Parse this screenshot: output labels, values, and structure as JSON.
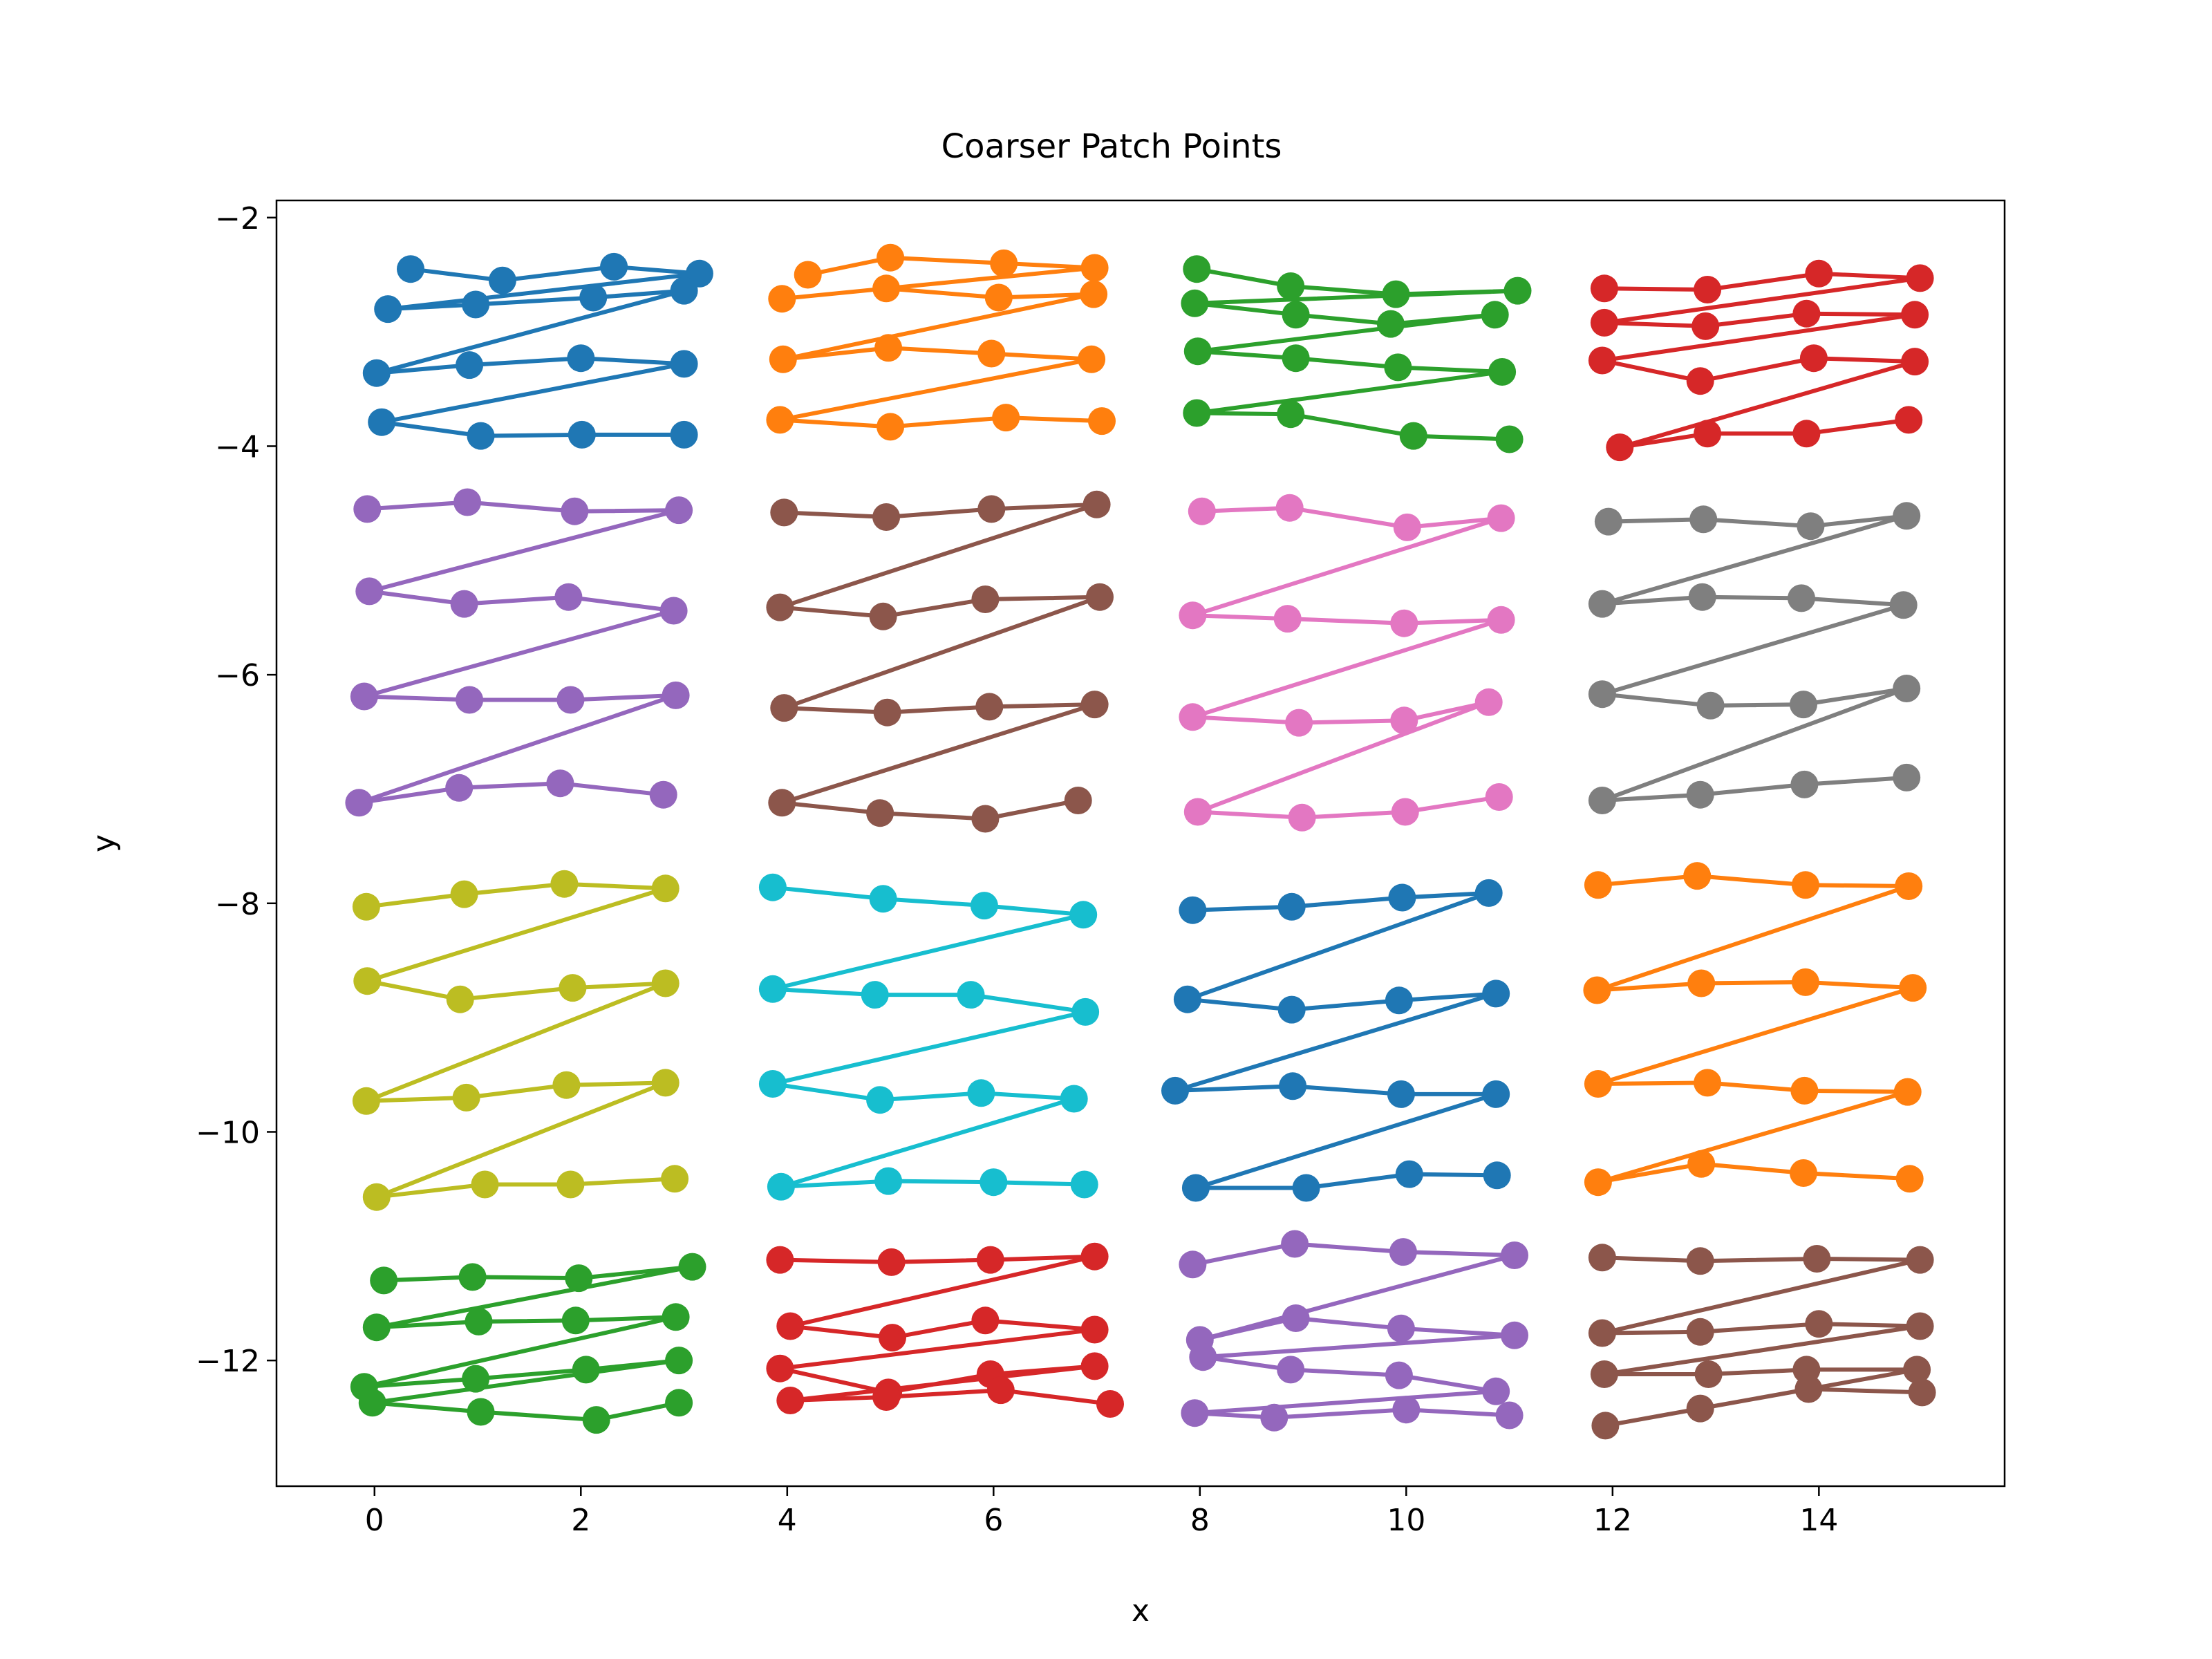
{
  "chart_data": {
    "type": "line",
    "title": "Coarser Patch Points",
    "xlabel": "x",
    "ylabel": "y",
    "xlim": [
      -0.95,
      15.8
    ],
    "ylim": [
      -13.1,
      -1.85
    ],
    "xticks": [
      0,
      2,
      4,
      6,
      8,
      10,
      12,
      14
    ],
    "yticks": [
      -12,
      -10,
      -8,
      -6,
      -4,
      -2
    ],
    "xtick_labels": [
      "0",
      "2",
      "4",
      "6",
      "8",
      "10",
      "12",
      "14"
    ],
    "ytick_labels": [
      "−12",
      "−10",
      "−8",
      "−6",
      "−4",
      "−2"
    ],
    "grid": false,
    "legend": false,
    "marker": "circle",
    "series": [
      {
        "color": "#1f77b4",
        "x": [
          0.35,
          1.24,
          2.32,
          3.15,
          0.13,
          0.98,
          2.12,
          3.0,
          0.02,
          0.92,
          2.0,
          3.0,
          0.07,
          1.03,
          2.01,
          3.0
        ],
        "y": [
          -2.45,
          -2.55,
          -2.43,
          -2.49,
          -2.8,
          -2.76,
          -2.7,
          -2.64,
          -3.36,
          -3.29,
          -3.23,
          -3.28,
          -3.79,
          -3.91,
          -3.9,
          -3.9
        ]
      },
      {
        "color": "#ff7f0e",
        "x": [
          4.2,
          5.0,
          6.1,
          6.98,
          3.95,
          4.96,
          6.05,
          6.97,
          3.96,
          4.98,
          5.98,
          6.95,
          3.93,
          5.0,
          6.12,
          7.05
        ],
        "y": [
          -2.5,
          -2.35,
          -2.4,
          -2.44,
          -2.71,
          -2.62,
          -2.7,
          -2.67,
          -3.24,
          -3.14,
          -3.19,
          -3.24,
          -3.77,
          -3.83,
          -3.75,
          -3.78
        ]
      },
      {
        "color": "#2ca02c",
        "x": [
          7.97,
          8.88,
          9.9,
          11.08,
          7.95,
          8.93,
          9.85,
          10.86,
          7.98,
          8.93,
          9.92,
          10.93,
          7.97,
          8.88,
          10.07,
          11.0
        ],
        "y": [
          -2.45,
          -2.6,
          -2.67,
          -2.64,
          -2.75,
          -2.85,
          -2.93,
          -2.85,
          -3.17,
          -3.23,
          -3.31,
          -3.35,
          -3.71,
          -3.72,
          -3.91,
          -3.94
        ]
      },
      {
        "color": "#d62728",
        "x": [
          11.92,
          12.92,
          14.0,
          14.98,
          11.92,
          12.9,
          13.88,
          14.93,
          11.9,
          12.85,
          13.95,
          14.93,
          12.07,
          12.92,
          13.88,
          14.87
        ],
        "y": [
          -2.62,
          -2.63,
          -2.49,
          -2.53,
          -2.92,
          -2.95,
          -2.84,
          -2.85,
          -3.25,
          -3.43,
          -3.23,
          -3.26,
          -4.01,
          -3.89,
          -3.89,
          -3.77
        ]
      },
      {
        "color": "#9467bd",
        "x": [
          -0.07,
          0.9,
          1.94,
          2.95,
          -0.05,
          0.87,
          1.88,
          2.9,
          -0.1,
          0.92,
          1.9,
          2.92,
          -0.15,
          0.82,
          1.8,
          2.8
        ],
        "y": [
          -4.55,
          -4.49,
          -4.57,
          -4.56,
          -5.27,
          -5.38,
          -5.32,
          -5.44,
          -6.19,
          -6.22,
          -6.22,
          -6.18,
          -7.12,
          -6.99,
          -6.95,
          -7.05
        ]
      },
      {
        "color": "#8c564b",
        "x": [
          3.97,
          4.96,
          5.98,
          7.0,
          3.93,
          4.93,
          5.92,
          7.03,
          3.97,
          4.97,
          5.96,
          6.98,
          3.95,
          4.9,
          5.92,
          6.82
        ],
        "y": [
          -4.58,
          -4.62,
          -4.55,
          -4.51,
          -5.41,
          -5.49,
          -5.34,
          -5.32,
          -6.29,
          -6.33,
          -6.28,
          -6.26,
          -7.12,
          -7.21,
          -7.26,
          -7.1
        ]
      },
      {
        "color": "#e377c2",
        "x": [
          8.02,
          8.87,
          10.01,
          10.92,
          7.93,
          8.85,
          9.98,
          10.92,
          7.93,
          8.96,
          9.98,
          10.8,
          7.98,
          8.99,
          9.99,
          10.9
        ],
        "y": [
          -4.57,
          -4.54,
          -4.71,
          -4.63,
          -5.48,
          -5.51,
          -5.55,
          -5.52,
          -6.37,
          -6.42,
          -6.4,
          -6.24,
          -7.2,
          -7.25,
          -7.2,
          -7.07
        ]
      },
      {
        "color": "#7f7f7f",
        "x": [
          11.96,
          12.88,
          13.92,
          14.85,
          11.9,
          12.87,
          13.83,
          14.82,
          11.9,
          12.95,
          13.85,
          14.85,
          11.9,
          12.85,
          13.86,
          14.85
        ],
        "y": [
          -4.66,
          -4.64,
          -4.7,
          -4.61,
          -5.38,
          -5.32,
          -5.33,
          -5.39,
          -6.17,
          -6.27,
          -6.26,
          -6.12,
          -7.1,
          -7.05,
          -6.96,
          -6.9
        ]
      },
      {
        "color": "#bcbd22",
        "x": [
          -0.08,
          0.87,
          1.84,
          2.82,
          -0.07,
          0.83,
          1.92,
          2.82,
          -0.08,
          0.89,
          1.86,
          2.82,
          0.02,
          1.07,
          1.9,
          2.91
        ],
        "y": [
          -8.03,
          -7.92,
          -7.83,
          -7.87,
          -8.68,
          -8.84,
          -8.74,
          -8.7,
          -9.73,
          -9.7,
          -9.59,
          -9.57,
          -10.57,
          -10.46,
          -10.46,
          -10.41
        ]
      },
      {
        "color": "#17becf",
        "x": [
          3.86,
          4.93,
          5.91,
          6.87,
          3.86,
          4.85,
          5.78,
          6.89,
          3.86,
          4.9,
          5.88,
          6.78,
          3.94,
          4.98,
          6.0,
          6.88
        ],
        "y": [
          -7.86,
          -7.96,
          -8.02,
          -8.1,
          -8.75,
          -8.8,
          -8.8,
          -8.95,
          -9.58,
          -9.72,
          -9.66,
          -9.71,
          -10.48,
          -10.43,
          -10.44,
          -10.46
        ]
      },
      {
        "color": "#1f77b4",
        "x": [
          7.93,
          8.89,
          9.96,
          10.8,
          7.88,
          8.89,
          9.93,
          10.87,
          7.76,
          8.9,
          9.95,
          10.87,
          7.96,
          9.03,
          10.03,
          10.88
        ],
        "y": [
          -8.06,
          -8.03,
          -7.95,
          -7.91,
          -8.84,
          -8.93,
          -8.85,
          -8.79,
          -9.64,
          -9.6,
          -9.67,
          -9.67,
          -10.49,
          -10.49,
          -10.37,
          -10.38
        ]
      },
      {
        "color": "#ff7f0e",
        "x": [
          11.86,
          12.82,
          13.87,
          14.87,
          11.85,
          12.86,
          13.87,
          14.91,
          11.86,
          12.92,
          13.86,
          14.86,
          11.86,
          12.86,
          13.85,
          14.88
        ],
        "y": [
          -7.84,
          -7.76,
          -7.84,
          -7.85,
          -8.76,
          -8.7,
          -8.69,
          -8.74,
          -9.58,
          -9.57,
          -9.64,
          -9.65,
          -10.44,
          -10.28,
          -10.36,
          -10.41
        ]
      },
      {
        "color": "#2ca02c",
        "x": [
          0.09,
          0.95,
          1.98,
          3.08,
          0.02,
          1.01,
          1.95,
          2.92,
          -0.1,
          0.98,
          2.05,
          2.95,
          -0.02,
          1.03,
          2.15,
          2.95
        ],
        "y": [
          -11.3,
          -11.27,
          -11.28,
          -11.18,
          -11.71,
          -11.66,
          -11.65,
          -11.62,
          -12.23,
          -12.16,
          -12.08,
          -12.0,
          -12.37,
          -12.45,
          -12.52,
          -12.37
        ]
      },
      {
        "color": "#d62728",
        "x": [
          3.93,
          5.01,
          5.97,
          6.98,
          4.03,
          5.02,
          5.92,
          6.98,
          3.93,
          4.98,
          5.97,
          6.98,
          4.03,
          4.96,
          6.07,
          7.13
        ],
        "y": [
          -11.12,
          -11.14,
          -11.12,
          -11.09,
          -11.7,
          -11.8,
          -11.65,
          -11.73,
          -12.07,
          -12.28,
          -12.12,
          -12.05,
          -12.35,
          -12.32,
          -12.26,
          -12.38
        ]
      },
      {
        "color": "#9467bd",
        "x": [
          7.93,
          8.92,
          9.97,
          11.05,
          8.0,
          8.93,
          9.95,
          11.05,
          8.03,
          8.88,
          9.93,
          10.87,
          7.95,
          8.72,
          10.0,
          11.0
        ],
        "y": [
          -11.16,
          -10.98,
          -11.05,
          -11.08,
          -11.82,
          -11.63,
          -11.72,
          -11.78,
          -11.97,
          -12.08,
          -12.13,
          -12.27,
          -12.46,
          -12.5,
          -12.43,
          -12.48
        ]
      },
      {
        "color": "#8c564b",
        "x": [
          11.9,
          12.85,
          13.98,
          14.98,
          11.9,
          12.85,
          14.0,
          14.98,
          11.92,
          12.93,
          13.88,
          14.95,
          11.93,
          12.85,
          13.9,
          15.0
        ],
        "y": [
          -11.1,
          -11.13,
          -11.11,
          -11.12,
          -11.76,
          -11.75,
          -11.68,
          -11.7,
          -12.12,
          -12.12,
          -12.08,
          -12.08,
          -12.57,
          -12.42,
          -12.25,
          -12.28
        ]
      }
    ]
  }
}
